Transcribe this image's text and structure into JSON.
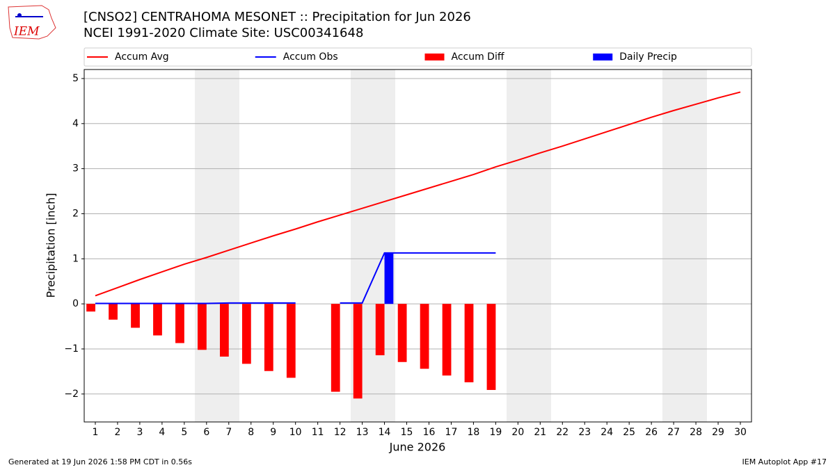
{
  "logo_text": "IEM",
  "footer": {
    "left": "Generated at 19 Jun 2026 1:58 PM CDT in 0.56s",
    "right": "IEM Autoplot App #17"
  },
  "chart_data": {
    "type": "bar-line",
    "title": "[CNSO2] CENTRAHOMA MESONET :: Precipitation for Jun 2026",
    "subtitle": "NCEI 1991-2020 Climate Site: USC00341648",
    "x_label": "June 2026",
    "y_label": "Precipitation [inch]",
    "x": [
      1,
      2,
      3,
      4,
      5,
      6,
      7,
      8,
      9,
      10,
      11,
      12,
      13,
      14,
      15,
      16,
      17,
      18,
      19,
      20,
      21,
      22,
      23,
      24,
      25,
      26,
      27,
      28,
      29,
      30
    ],
    "xlim": [
      0.5,
      30.5
    ],
    "xticks": [
      1,
      2,
      3,
      4,
      5,
      6,
      7,
      8,
      9,
      10,
      11,
      12,
      13,
      14,
      15,
      16,
      17,
      18,
      19,
      20,
      21,
      22,
      23,
      24,
      25,
      26,
      27,
      28,
      29,
      30
    ],
    "ylim": [
      -2.62,
      5.2
    ],
    "yticks": [
      {
        "value": -2,
        "label": "−2"
      },
      {
        "value": -1,
        "label": "−1"
      },
      0,
      1,
      2,
      3,
      4,
      5
    ],
    "grid": true,
    "legend": "above",
    "series": [
      {
        "name": "Accum Avg",
        "color": "#ff0000",
        "kind": "line",
        "values": [
          0.18,
          0.36,
          0.54,
          0.71,
          0.88,
          1.03,
          1.19,
          1.35,
          1.51,
          1.66,
          1.82,
          1.97,
          2.12,
          2.27,
          2.42,
          2.57,
          2.72,
          2.87,
          3.04,
          3.19,
          3.35,
          3.5,
          3.66,
          3.82,
          3.98,
          4.14,
          4.29,
          4.43,
          4.57,
          4.7
        ]
      },
      {
        "name": "Accum Obs",
        "color": "#0000ff",
        "kind": "line",
        "values": [
          0.01,
          0.01,
          0.01,
          0.01,
          0.01,
          0.01,
          0.02,
          0.02,
          0.02,
          0.02,
          null,
          0.02,
          0.02,
          1.13,
          1.13,
          1.13,
          1.13,
          1.13,
          1.13,
          null,
          null,
          null,
          null,
          null,
          null,
          null,
          null,
          null,
          null,
          null
        ]
      },
      {
        "name": "Accum Diff",
        "color": "#ff0000",
        "kind": "bar-left",
        "values": [
          -0.17,
          -0.35,
          -0.53,
          -0.7,
          -0.87,
          -1.02,
          -1.17,
          -1.33,
          -1.49,
          -1.64,
          null,
          -1.95,
          -2.1,
          -1.14,
          -1.29,
          -1.44,
          -1.59,
          -1.74,
          -1.91,
          null,
          null,
          null,
          null,
          null,
          null,
          null,
          null,
          null,
          null,
          null
        ]
      },
      {
        "name": "Daily Precip",
        "color": "#0000ff",
        "kind": "bar-right",
        "values": [
          0,
          0,
          0,
          0,
          0,
          0,
          0,
          0,
          0,
          0,
          null,
          0,
          0,
          1.12,
          0,
          0,
          0,
          0,
          0,
          null,
          null,
          null,
          null,
          null,
          null,
          null,
          null,
          null,
          null,
          null
        ]
      }
    ]
  }
}
